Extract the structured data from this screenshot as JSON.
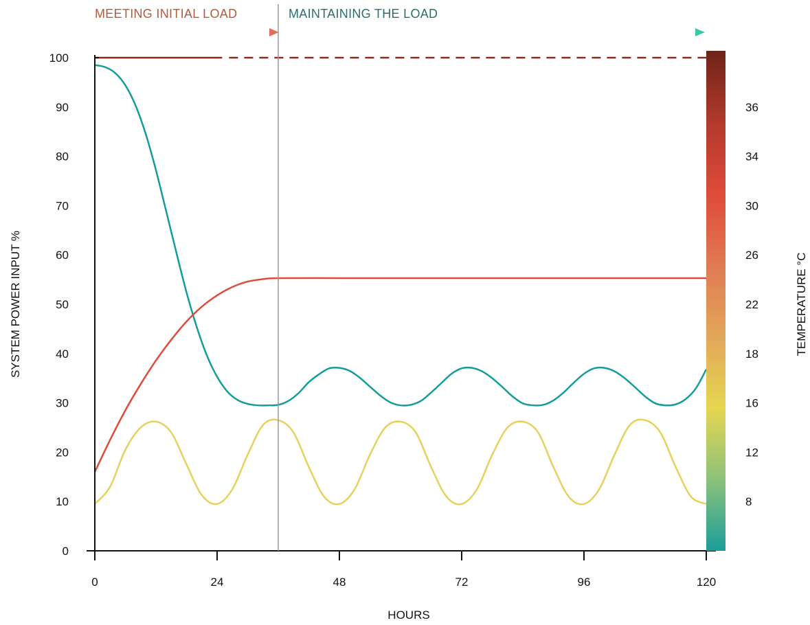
{
  "chart_data": {
    "type": "line",
    "xlabel": "HOURS",
    "ylabel": "SYSTEM POWER INPUT %",
    "y2label": "TEMPERATURE °C",
    "xlim": [
      0,
      120
    ],
    "ylim": [
      0,
      100
    ],
    "xticks": [
      "0",
      "24",
      "48",
      "72",
      "96",
      "120"
    ],
    "yticks": [
      "0",
      "10",
      "20",
      "30",
      "40",
      "50",
      "60",
      "70",
      "80",
      "90",
      "100"
    ],
    "y2ticks": [
      "8",
      "12",
      "16",
      "18",
      "22",
      "26",
      "30",
      "34",
      "36"
    ],
    "colorbar_colors": [
      "#1a9e9a",
      "#8cc27a",
      "#e6d650",
      "#e2a65a",
      "#e07a52",
      "#e04a3a",
      "#b23a2c",
      "#6e2418"
    ],
    "phases": [
      {
        "label": "MEETING INITIAL LOAD",
        "x_start": 0,
        "x_end": 36,
        "text_color": "#b55a3c",
        "arrow_color": "#e0705a"
      },
      {
        "label": "MAINTAINING THE LOAD",
        "x_start": 36,
        "x_end": 120,
        "text_color": "#2a6e72",
        "arrow_color": "#3cc8a8"
      }
    ],
    "phase_divider_x": 36,
    "series": [
      {
        "color": "#8b2a1c",
        "style": "solid-then-dashed",
        "dash_from": 25,
        "x": [
          0,
          120
        ],
        "values": [
          100,
          100
        ]
      },
      {
        "color": "#139c98",
        "x": [
          0,
          2,
          4,
          6,
          8,
          10,
          12,
          14,
          16,
          18,
          20,
          22,
          24,
          26,
          28,
          30,
          32,
          34,
          36,
          38,
          40,
          42,
          44,
          46,
          48,
          50,
          52,
          54,
          56,
          58,
          60,
          62,
          64,
          66,
          68,
          70,
          72,
          74,
          76,
          78,
          80,
          82,
          84,
          86,
          88,
          90,
          92,
          94,
          96,
          98,
          100,
          102,
          104,
          106,
          108,
          110,
          112,
          114,
          116,
          118,
          120
        ],
        "values": [
          98.5,
          98.1,
          96.9,
          94.4,
          90.3,
          84.5,
          77.2,
          68.9,
          60.5,
          52.4,
          45.4,
          39.6,
          35.3,
          32.3,
          30.6,
          29.8,
          29.5,
          29.5,
          29.6,
          30.4,
          32.0,
          34.2,
          35.8,
          37.0,
          37.1,
          36.5,
          35.1,
          33.3,
          31.5,
          30.1,
          29.5,
          29.6,
          30.4,
          32.1,
          34.0,
          35.9,
          37.0,
          37.1,
          36.4,
          35.0,
          33.2,
          31.3,
          29.9,
          29.5,
          29.6,
          30.5,
          32.1,
          34.1,
          35.9,
          37.0,
          37.1,
          36.4,
          35.0,
          33.2,
          31.3,
          29.9,
          29.5,
          29.7,
          30.8,
          33.0,
          36.8
        ]
      },
      {
        "color": "#df4a3a",
        "x": [
          0,
          3,
          6,
          9,
          12,
          15,
          18,
          21,
          24,
          27,
          30,
          33,
          36,
          48,
          60,
          72,
          84,
          96,
          108,
          120
        ],
        "values": [
          16.0,
          22.5,
          28.5,
          33.8,
          38.6,
          42.8,
          46.5,
          49.5,
          51.8,
          53.5,
          54.6,
          55.1,
          55.3,
          55.3,
          55.3,
          55.3,
          55.3,
          55.3,
          55.3,
          55.3
        ]
      },
      {
        "color": "#e5d15d",
        "x": [
          0,
          3,
          6,
          9,
          12,
          15,
          18,
          21,
          24,
          27,
          30,
          33,
          36,
          39,
          42,
          45,
          48,
          51,
          54,
          57,
          60,
          63,
          66,
          69,
          72,
          75,
          78,
          81,
          84,
          87,
          90,
          93,
          96,
          99,
          102,
          105,
          108,
          111,
          114,
          117,
          120
        ],
        "values": [
          9.5,
          13.0,
          20.5,
          25.0,
          26.2,
          24.0,
          17.5,
          11.3,
          9.5,
          12.5,
          19.5,
          25.5,
          26.5,
          24.0,
          17.0,
          11.0,
          9.5,
          12.5,
          19.5,
          25.0,
          26.2,
          24.0,
          17.0,
          11.0,
          9.5,
          12.5,
          19.5,
          25.0,
          26.2,
          24.0,
          17.0,
          11.0,
          9.5,
          12.5,
          19.5,
          25.5,
          26.5,
          24.0,
          17.0,
          11.0,
          9.5
        ]
      }
    ]
  }
}
